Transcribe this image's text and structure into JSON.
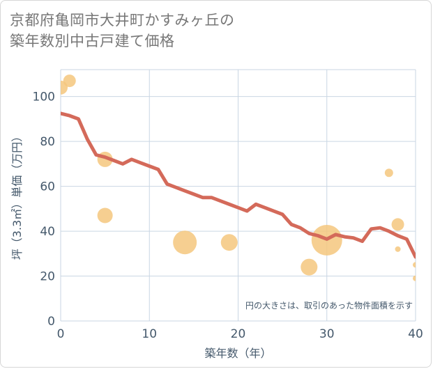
{
  "title_lines": [
    "京都府亀岡市大井町かすみヶ丘の",
    "築年数別中古戸建て価格"
  ],
  "colors": {
    "line": "#d46a5a",
    "bubble": "#f5c77e",
    "grid": "#c9d6e3",
    "axis_text": "#44586b",
    "note_text": "#44586b"
  },
  "chart_data": {
    "type": "scatter",
    "title": "京都府亀岡市大井町かすみヶ丘の築年数別中古戸建て価格",
    "xlabel": "築年数（年）",
    "ylabel": "坪（3.3㎡）単価（万円）",
    "xlim": [
      0,
      40
    ],
    "ylim": [
      0,
      112
    ],
    "xticks": [
      0,
      10,
      20,
      30,
      40
    ],
    "yticks": [
      0,
      20,
      40,
      60,
      80,
      100
    ],
    "grid": true,
    "note": "円の大きさは、取引のあった物件面積を示す",
    "line_series": {
      "x": [
        0,
        1,
        2,
        3,
        4,
        5,
        6,
        7,
        8,
        9,
        10,
        11,
        12,
        13,
        14,
        15,
        16,
        17,
        18,
        19,
        20,
        21,
        22,
        23,
        24,
        25,
        26,
        27,
        28,
        29,
        30,
        31,
        32,
        33,
        34,
        35,
        36,
        37,
        38,
        39,
        40
      ],
      "y": [
        92.5,
        91.5,
        90,
        81,
        74,
        73,
        71.5,
        70,
        72,
        70.5,
        69,
        67.5,
        61,
        59.5,
        58,
        56.5,
        55,
        55,
        53.5,
        52,
        50.5,
        49,
        52,
        50.5,
        49,
        47.5,
        43,
        41.5,
        39,
        38,
        36.5,
        38.5,
        37.5,
        37,
        35.5,
        41,
        41.5,
        40,
        38,
        36.5,
        28.5
      ]
    },
    "bubbles": [
      {
        "x": 0,
        "y": 104,
        "size": 10
      },
      {
        "x": 1,
        "y": 107,
        "size": 9
      },
      {
        "x": 5,
        "y": 72,
        "size": 11
      },
      {
        "x": 5,
        "y": 47,
        "size": 11
      },
      {
        "x": 14,
        "y": 35,
        "size": 17
      },
      {
        "x": 19,
        "y": 35,
        "size": 12
      },
      {
        "x": 28,
        "y": 24,
        "size": 12
      },
      {
        "x": 30,
        "y": 36,
        "size": 22
      },
      {
        "x": 37,
        "y": 66,
        "size": 6
      },
      {
        "x": 38,
        "y": 43,
        "size": 9
      },
      {
        "x": 38,
        "y": 32,
        "size": 4
      },
      {
        "x": 40,
        "y": 25,
        "size": 4
      },
      {
        "x": 40,
        "y": 19,
        "size": 4
      }
    ]
  }
}
